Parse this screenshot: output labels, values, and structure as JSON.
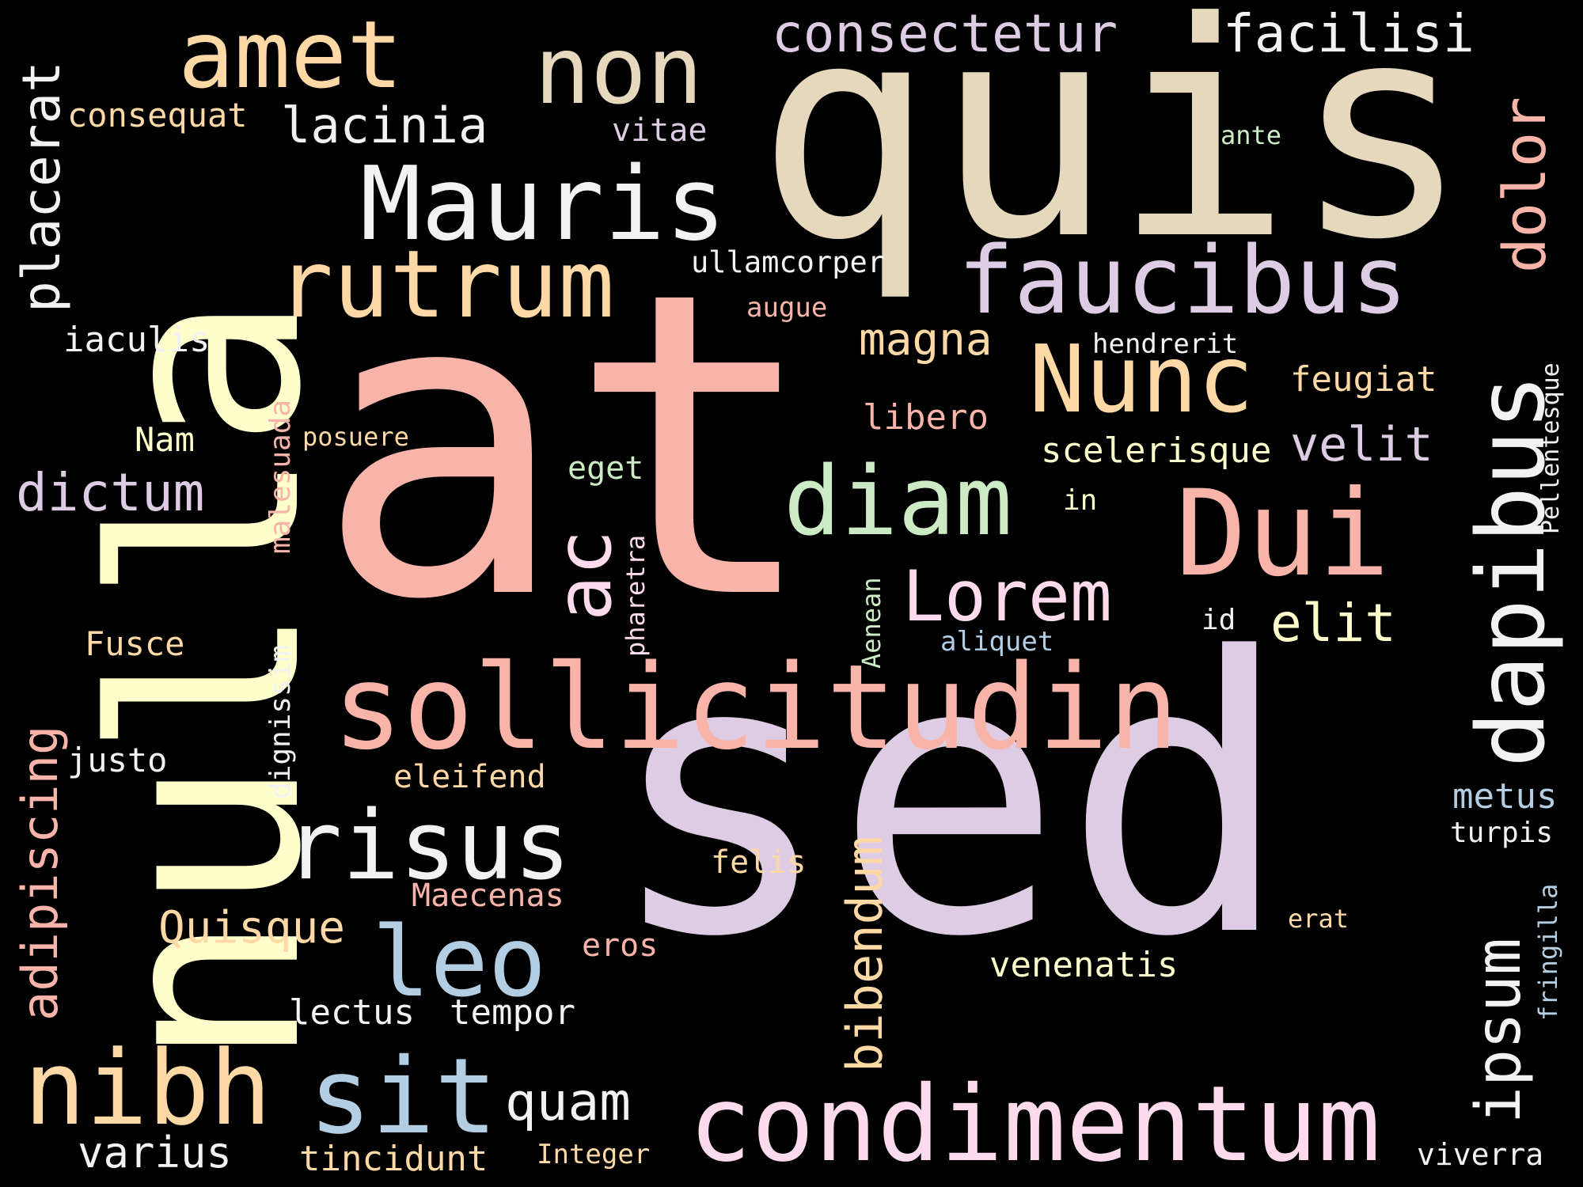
{
  "palette": {
    "background": "#000000",
    "salmon": "#F9B4AA",
    "lavender": "#DECBE4",
    "cream": "#FFFFCC",
    "peach": "#FED9A6",
    "mint": "#CCEBC5",
    "blue": "#B3CDE3",
    "beige": "#E5D8BD",
    "pink": "#FDDAEC",
    "white": "#F2F2F2"
  },
  "words": [
    {
      "text": "at"
    },
    {
      "text": "sed"
    },
    {
      "text": "quis"
    },
    {
      "text": "nulla"
    },
    {
      "text": "sollicitudin"
    },
    {
      "text": "condimentum"
    },
    {
      "text": "faucibus"
    },
    {
      "text": "dapibus"
    },
    {
      "text": "Mauris"
    },
    {
      "text": "rutrum"
    },
    {
      "text": "amet"
    },
    {
      "text": "non"
    },
    {
      "text": "Nunc"
    },
    {
      "text": "Dui"
    },
    {
      "text": "diam"
    },
    {
      "text": "risus"
    },
    {
      "text": "nibh"
    },
    {
      "text": "sit"
    },
    {
      "text": "leo"
    },
    {
      "text": "consectetur"
    },
    {
      "text": "facilisi"
    },
    {
      "text": "ipsum"
    },
    {
      "text": "ac"
    },
    {
      "text": "Lorem"
    },
    {
      "text": "dolor"
    },
    {
      "text": "lacinia"
    },
    {
      "text": "dictum"
    },
    {
      "text": "placerat"
    },
    {
      "text": "adipiscing"
    },
    {
      "text": "bibendum"
    },
    {
      "text": "elit"
    },
    {
      "text": "quam"
    },
    {
      "text": "varius"
    },
    {
      "text": "Quisque"
    },
    {
      "text": "magna"
    },
    {
      "text": "velit"
    },
    {
      "text": "consequat"
    },
    {
      "text": "iaculis"
    },
    {
      "text": "scelerisque"
    },
    {
      "text": "feugiat"
    },
    {
      "text": "libero"
    },
    {
      "text": "metus"
    },
    {
      "text": "lectus"
    },
    {
      "text": "tempor"
    },
    {
      "text": "tincidunt"
    },
    {
      "text": "venenatis"
    },
    {
      "text": "Maecenas"
    },
    {
      "text": "ullamcorper"
    },
    {
      "text": "vitae"
    },
    {
      "text": "eleifend"
    },
    {
      "text": "felis"
    },
    {
      "text": "turpis"
    },
    {
      "text": "viverra"
    },
    {
      "text": "dignissim"
    },
    {
      "text": "malesuada"
    },
    {
      "text": "Pellentesque"
    },
    {
      "text": "fringilla"
    },
    {
      "text": "pharetra"
    },
    {
      "text": "Aenean"
    },
    {
      "text": "hendrerit"
    },
    {
      "text": "augue"
    },
    {
      "text": "posuere"
    },
    {
      "text": "eget"
    },
    {
      "text": "Nam"
    },
    {
      "text": "Fusce"
    },
    {
      "text": "justo"
    },
    {
      "text": "eros"
    },
    {
      "text": "Integer"
    },
    {
      "text": "ante"
    },
    {
      "text": "in"
    },
    {
      "text": "id"
    },
    {
      "text": "aliquet"
    },
    {
      "text": "erat"
    }
  ]
}
